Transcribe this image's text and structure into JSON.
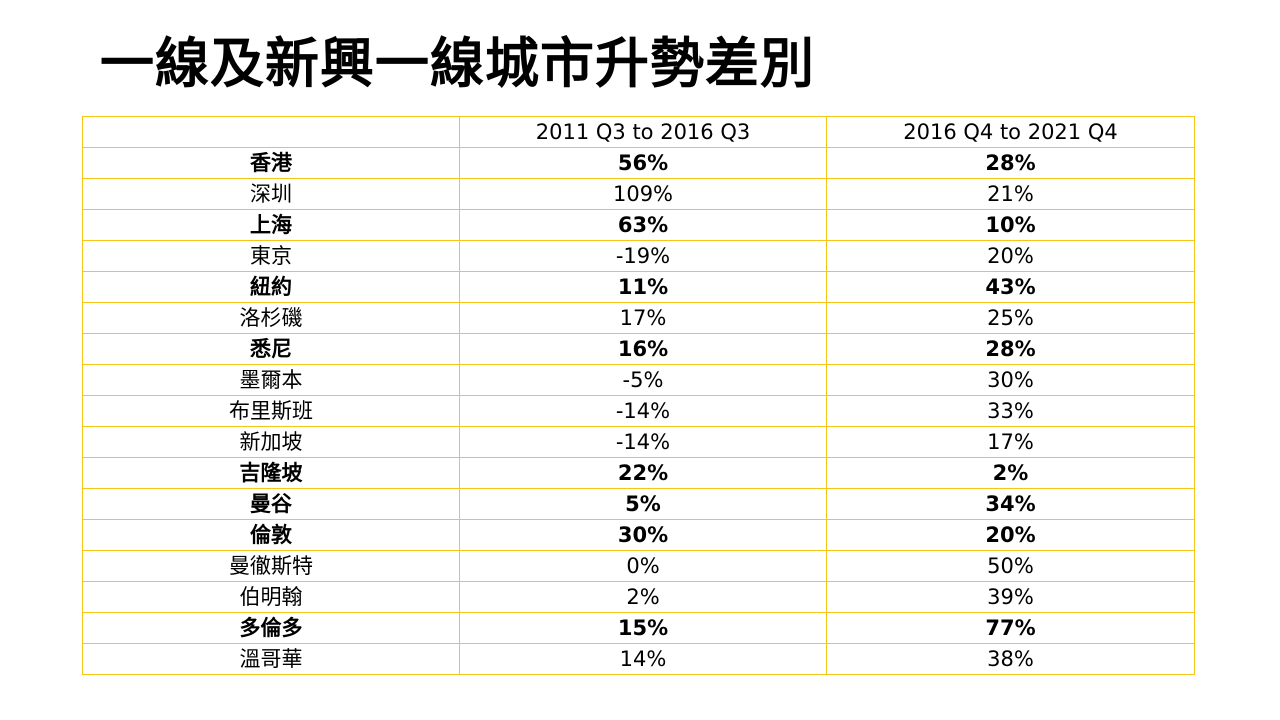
{
  "title": "一線及新興一線城市升勢差別",
  "table": {
    "headers": [
      "",
      "2011 Q3 to 2016 Q3",
      "2016 Q4 to 2021 Q4"
    ],
    "rows": [
      {
        "city": "香港",
        "period1": "56%",
        "period2": "28%",
        "bold": true
      },
      {
        "city": "深圳",
        "period1": "109%",
        "period2": "21%",
        "bold": false
      },
      {
        "city": "上海",
        "period1": "63%",
        "period2": "10%",
        "bold": true
      },
      {
        "city": "東京",
        "period1": "-19%",
        "period2": "20%",
        "bold": false
      },
      {
        "city": "紐約",
        "period1": "11%",
        "period2": "43%",
        "bold": true
      },
      {
        "city": "洛杉磯",
        "period1": "17%",
        "period2": "25%",
        "bold": false
      },
      {
        "city": "悉尼",
        "period1": "16%",
        "period2": "28%",
        "bold": true
      },
      {
        "city": "墨爾本",
        "period1": "-5%",
        "period2": "30%",
        "bold": false
      },
      {
        "city": "布里斯班",
        "period1": "-14%",
        "period2": "33%",
        "bold": false
      },
      {
        "city": "新加坡",
        "period1": "-14%",
        "period2": "17%",
        "bold": false
      },
      {
        "city": "吉隆坡",
        "period1": "22%",
        "period2": "2%",
        "bold": true
      },
      {
        "city": "曼谷",
        "period1": "5%",
        "period2": "34%",
        "bold": true
      },
      {
        "city": "倫敦",
        "period1": "30%",
        "period2": "20%",
        "bold": true
      },
      {
        "city": "曼徹斯特",
        "period1": "0%",
        "period2": "50%",
        "bold": false
      },
      {
        "city": "伯明翰",
        "period1": "2%",
        "period2": "39%",
        "bold": false
      },
      {
        "city": "多倫多",
        "period1": "15%",
        "period2": "77%",
        "bold": true
      },
      {
        "city": "溫哥華",
        "period1": "14%",
        "period2": "38%",
        "bold": false
      }
    ]
  },
  "colors": {
    "border": "#F5C518",
    "text": "#000000",
    "background": "#FFFFFF"
  }
}
